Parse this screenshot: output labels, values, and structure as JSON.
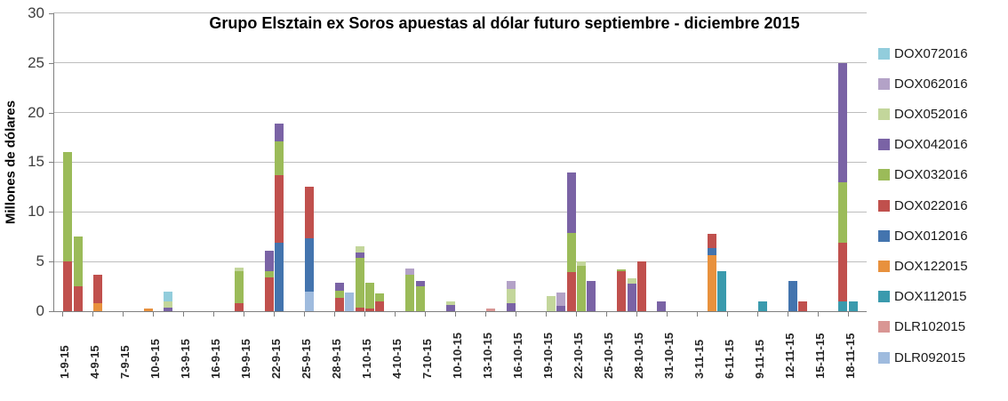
{
  "title": "Grupo Elsztain ex  Soros apuestas al dólar futuro septiembre - diciembre 2015",
  "y_axis": {
    "label": "Millones de dólares",
    "ticks": [
      0,
      5,
      10,
      15,
      20,
      25,
      30
    ]
  },
  "legend": {
    "position": "right",
    "items": [
      {
        "name": "DOX072016",
        "color": "#92CDDC"
      },
      {
        "name": "DOX062016",
        "color": "#B3A2C7"
      },
      {
        "name": "DOX052016",
        "color": "#C3D69B"
      },
      {
        "name": "DOX042016",
        "color": "#7A63A5"
      },
      {
        "name": "DOX032016",
        "color": "#9BBB59"
      },
      {
        "name": "DOX022016",
        "color": "#C0504D"
      },
      {
        "name": "DOX012016",
        "color": "#4374AE"
      },
      {
        "name": "DOX122015",
        "color": "#E8913D"
      },
      {
        "name": "DOX112015",
        "color": "#3A9AAD"
      },
      {
        "name": "DLR102015",
        "color": "#D99694"
      },
      {
        "name": "DLR092015",
        "color": "#9FBBDE"
      }
    ]
  },
  "chart_data": {
    "type": "bar",
    "stacked": true,
    "title": "Grupo Elsztain ex  Soros apuestas al dólar futuro septiembre - diciembre 2015",
    "xlabel": "",
    "ylabel": "Millones de dólares",
    "ylim": [
      0,
      30
    ],
    "grid": true,
    "legend_position": "right",
    "stack_order_bottom_to_top": [
      "DLR092015",
      "DLR102015",
      "DOX112015",
      "DOX122015",
      "DOX012016",
      "DOX022016",
      "DOX032016",
      "DOX042016",
      "DOX052016",
      "DOX062016",
      "DOX072016"
    ],
    "series_colors": {
      "DOX072016": "#92CDDC",
      "DOX062016": "#B3A2C7",
      "DOX052016": "#C3D69B",
      "DOX042016": "#7A63A5",
      "DOX032016": "#9BBB59",
      "DOX022016": "#C0504D",
      "DOX012016": "#4374AE",
      "DOX122015": "#E8913D",
      "DOX112015": "#3A9AAD",
      "DLR102015": "#D99694",
      "DLR092015": "#9FBBDE"
    },
    "x_tick_labels": [
      "1-9-15",
      "4-9-15",
      "7-9-15",
      "10-9-15",
      "13-9-15",
      "16-9-15",
      "19-9-15",
      "22-9-15",
      "25-9-15",
      "28-9-15",
      "1-10-15",
      "4-10-15",
      "7-10-15",
      "10-10-15",
      "13-10-15",
      "16-10-15",
      "19-10-15",
      "22-10-15",
      "25-10-15",
      "28-10-15",
      "31-10-15",
      "3-11-15",
      "6-11-15",
      "9-11-15",
      "12-11-15",
      "15-11-15",
      "18-11-15"
    ],
    "bars": [
      {
        "date": "1-9-15",
        "day": 0,
        "segments": {
          "DOX022016": 5.0,
          "DOX032016": 11.0
        }
      },
      {
        "date": "2-9-15",
        "day": 1,
        "segments": {
          "DOX022016": 2.5,
          "DOX032016": 5.0
        }
      },
      {
        "date": "4-9-15",
        "day": 3,
        "segments": {
          "DOX122015": 0.8,
          "DOX022016": 2.9
        }
      },
      {
        "date": "9-9-15",
        "day": 8,
        "segments": {
          "DOX122015": 0.3
        }
      },
      {
        "date": "11-9-15",
        "day": 10,
        "segments": {
          "DOX042016": 0.4,
          "DOX052016": 0.6,
          "DOX072016": 1.0
        }
      },
      {
        "date": "18-9-15",
        "day": 17,
        "segments": {
          "DOX022016": 0.8,
          "DOX032016": 3.2,
          "DOX052016": 0.4
        }
      },
      {
        "date": "21-9-15",
        "day": 20,
        "segments": {
          "DOX022016": 3.4,
          "DOX032016": 0.6,
          "DOX042016": 2.1
        }
      },
      {
        "date": "22-9-15",
        "day": 21,
        "segments": {
          "DOX012016": 6.9,
          "DOX022016": 6.8,
          "DOX032016": 3.4,
          "DOX042016": 1.8
        }
      },
      {
        "date": "25-9-15",
        "day": 24,
        "segments": {
          "DLR092015": 2.0,
          "DOX012016": 5.3,
          "DOX022016": 5.2
        }
      },
      {
        "date": "28-9-15",
        "day": 27,
        "segments": {
          "DOX022016": 1.3,
          "DOX032016": 0.8,
          "DOX042016": 0.8
        }
      },
      {
        "date": "29-9-15",
        "day": 28,
        "segments": {
          "DLR092015": 1.9
        }
      },
      {
        "date": "30-9-15",
        "day": 29,
        "segments": {
          "DOX022016": 0.4,
          "DOX032016": 5.0,
          "DOX042016": 0.5,
          "DOX052016": 0.6
        }
      },
      {
        "date": "1-10-15",
        "day": 30,
        "segments": {
          "DOX022016": 0.3,
          "DOX032016": 2.6
        }
      },
      {
        "date": "2-10-15",
        "day": 31,
        "segments": {
          "DOX022016": 1.0,
          "DOX032016": 0.8
        }
      },
      {
        "date": "5-10-15",
        "day": 34,
        "segments": {
          "DOX032016": 3.7,
          "DOX062016": 0.6
        }
      },
      {
        "date": "6-10-15",
        "day": 35,
        "segments": {
          "DOX032016": 2.5,
          "DOX042016": 0.5
        }
      },
      {
        "date": "9-10-15",
        "day": 38,
        "segments": {
          "DOX042016": 0.6,
          "DOX052016": 0.4
        }
      },
      {
        "date": "13-10-15",
        "day": 42,
        "segments": {
          "DLR102015": 0.3
        }
      },
      {
        "date": "15-10-15",
        "day": 44,
        "segments": {
          "DOX042016": 0.8,
          "DOX052016": 1.4,
          "DOX062016": 0.8
        }
      },
      {
        "date": "19-10-15",
        "day": 48,
        "segments": {
          "DOX052016": 1.5
        }
      },
      {
        "date": "20-10-15",
        "day": 49,
        "segments": {
          "DOX042016": 0.5,
          "DOX062016": 1.4
        }
      },
      {
        "date": "21-10-15",
        "day": 50,
        "segments": {
          "DOX022016": 3.9,
          "DOX032016": 4.0,
          "DOX042016": 6.1
        }
      },
      {
        "date": "22-10-15",
        "day": 51,
        "segments": {
          "DOX032016": 4.6,
          "DOX052016": 0.4
        }
      },
      {
        "date": "23-10-15",
        "day": 52,
        "segments": {
          "DOX042016": 3.0
        }
      },
      {
        "date": "26-10-15",
        "day": 55,
        "segments": {
          "DOX022016": 4.0,
          "DOX032016": 0.2
        }
      },
      {
        "date": "27-10-15",
        "day": 56,
        "segments": {
          "DOX042016": 2.8,
          "DOX052016": 0.5
        }
      },
      {
        "date": "28-10-15",
        "day": 57,
        "segments": {
          "DOX022016": 5.0
        }
      },
      {
        "date": "30-10-15",
        "day": 59,
        "segments": {
          "DOX042016": 1.0
        }
      },
      {
        "date": "4-11-15",
        "day": 64,
        "segments": {
          "DOX122015": 5.6,
          "DOX012016": 0.8,
          "DOX022016": 1.4
        }
      },
      {
        "date": "5-11-15",
        "day": 65,
        "segments": {
          "DOX112015": 4.0
        }
      },
      {
        "date": "9-11-15",
        "day": 69,
        "segments": {
          "DOX112015": 1.0
        }
      },
      {
        "date": "12-11-15",
        "day": 72,
        "segments": {
          "DOX012016": 3.0
        }
      },
      {
        "date": "13-11-15",
        "day": 73,
        "segments": {
          "DOX022016": 1.0
        }
      },
      {
        "date": "17-11-15",
        "day": 77,
        "segments": {
          "DOX112015": 1.0,
          "DOX022016": 5.9,
          "DOX032016": 6.1,
          "DOX042016": 12.0
        }
      },
      {
        "date": "18-11-15",
        "day": 78,
        "segments": {
          "DOX112015": 1.0
        }
      }
    ]
  }
}
